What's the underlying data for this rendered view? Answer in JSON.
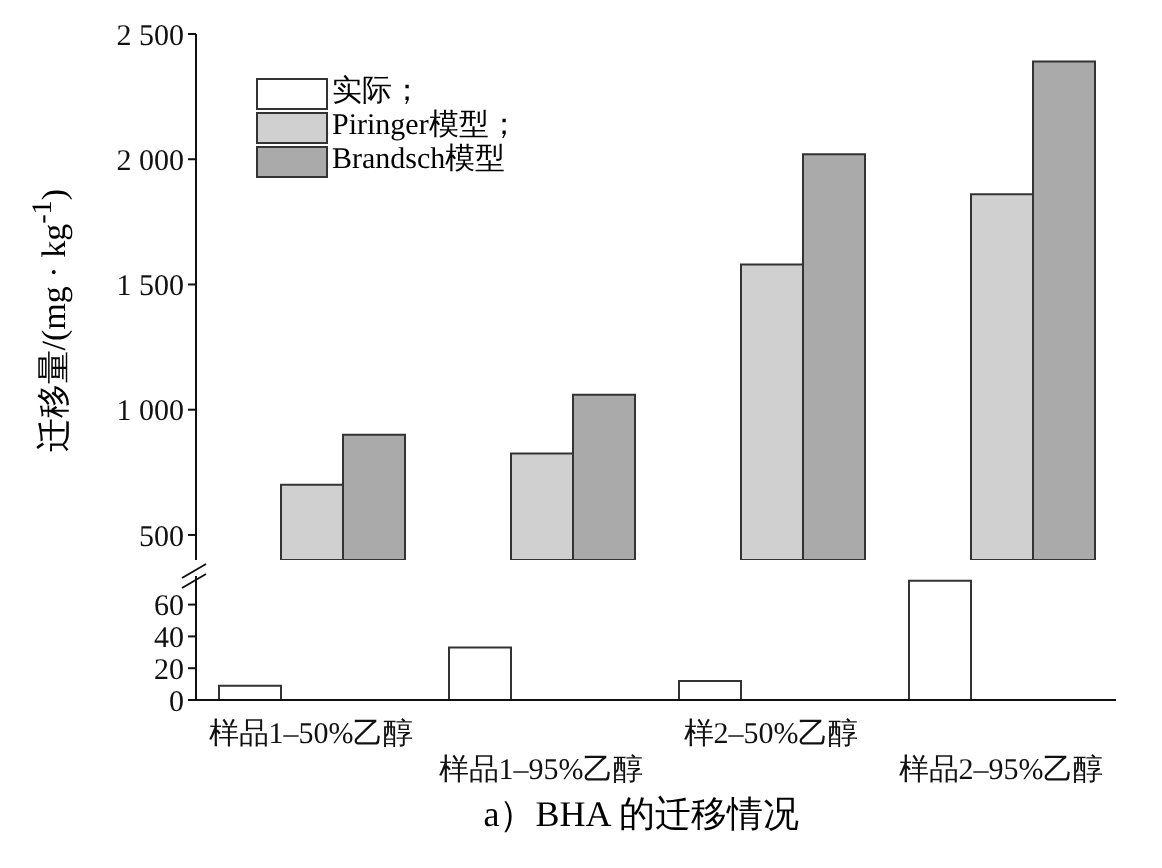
{
  "chart_data": [
    {
      "type": "bar",
      "ylabel": "迁移量/(mg · kg$^{-1}$)",
      "categories": [
        null,
        null,
        null,
        null
      ],
      "ylim": [
        400,
        2500
      ],
      "yticks": [
        {
          "value": 500,
          "label": "500"
        },
        {
          "value": 1000,
          "label": "1 000"
        },
        {
          "value": 1500,
          "label": "1 500"
        },
        {
          "value": 2000,
          "label": "2 000"
        },
        {
          "value": 2500,
          "label": "2 500"
        }
      ],
      "tick_labels": "y",
      "legend": "top left",
      "series": [
        {
          "name": "Piringer模型；",
          "color": "#d0d0d0",
          "values": [
            700,
            825,
            1580,
            1860
          ]
        },
        {
          "name": "Brandsch模型",
          "color": "#aaaaaa",
          "values": [
            900,
            1060,
            2020,
            2390
          ]
        }
      ]
    },
    {
      "type": "bar",
      "title": "a）BHA 的迁移情况",
      "categories": [
        "样品1–50%乙醇",
        "样品1–95%乙醇",
        "样2–50%乙醇",
        "样品2–95%乙醇"
      ],
      "ylim": [
        0,
        78
      ],
      "yticks": [
        0,
        20,
        40,
        60
      ],
      "series": [
        {
          "name": "实际；",
          "color": "#ffffff",
          "values": [
            9,
            33,
            12,
            75
          ]
        }
      ]
    }
  ]
}
